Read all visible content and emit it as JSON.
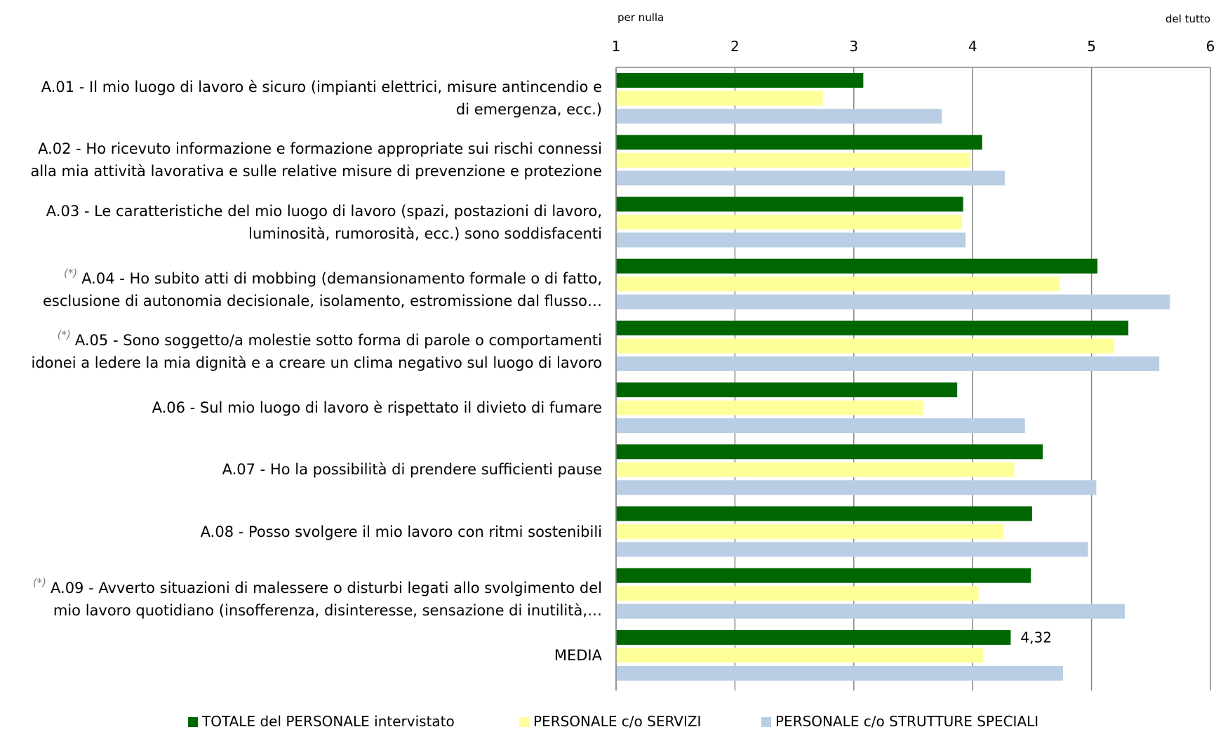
{
  "chart_data": {
    "type": "bar",
    "orientation": "horizontal",
    "xlim": [
      1,
      6
    ],
    "ticks": [
      "1",
      "2",
      "3",
      "4",
      "5",
      "6"
    ],
    "scale_low_label": "per nulla",
    "scale_high_label": "del tutto",
    "grid": true,
    "legend_position": "bottom",
    "categories": [
      {
        "code": "A.01",
        "asterisk": "",
        "lines": [
          "A.01 - Il mio luogo di lavoro è sicuro (impianti elettrici, misure antincendio e",
          "di emergenza, ecc.)"
        ]
      },
      {
        "code": "A.02",
        "asterisk": "",
        "lines": [
          "A.02 - Ho ricevuto informazione e formazione appropriate sui rischi connessi",
          "alla mia attività lavorativa e sulle relative misure di prevenzione e protezione"
        ]
      },
      {
        "code": "A.03",
        "asterisk": "",
        "lines": [
          "A.03 - Le caratteristiche del mio luogo di lavoro (spazi, postazioni di lavoro,",
          "luminosità, rumorosità, ecc.) sono soddisfacenti"
        ]
      },
      {
        "code": "A.04",
        "asterisk": "(*)",
        "lines": [
          "A.04 - Ho subito atti di mobbing (demansionamento formale o di fatto,",
          "esclusione di autonomia decisionale, isolamento, estromissione dal flusso…"
        ]
      },
      {
        "code": "A.05",
        "asterisk": "(*)",
        "lines": [
          "A.05 - Sono soggetto/a molestie sotto forma di parole o comportamenti",
          "idonei a ledere la mia dignità e a creare un clima negativo sul luogo di lavoro"
        ]
      },
      {
        "code": "A.06",
        "asterisk": "",
        "lines": [
          "A.06 - Sul mio luogo di lavoro è rispettato il divieto di fumare"
        ]
      },
      {
        "code": "A.07",
        "asterisk": "",
        "lines": [
          "A.07 - Ho la possibilità di prendere sufficienti pause"
        ]
      },
      {
        "code": "A.08",
        "asterisk": "",
        "lines": [
          "A.08 - Posso svolgere il mio lavoro con ritmi sostenibili"
        ]
      },
      {
        "code": "A.09",
        "asterisk": "(*)",
        "lines": [
          "A.09 - Avverto situazioni di malessere o disturbi legati allo svolgimento del",
          "mio lavoro quotidiano (insofferenza, disinteresse, sensazione di inutilità,…"
        ]
      },
      {
        "code": "MEDIA",
        "asterisk": "",
        "lines": [
          "MEDIA"
        ]
      }
    ],
    "series": [
      {
        "name": "TOTALE del PERSONALE intervistato",
        "color": "#006600",
        "values": [
          3.08,
          4.08,
          3.92,
          5.05,
          5.31,
          3.87,
          4.59,
          4.5,
          4.49,
          4.32
        ]
      },
      {
        "name": "PERSONALE c/o SERVIZI",
        "color": "#ffff99",
        "values": [
          2.74,
          3.98,
          3.91,
          4.73,
          5.19,
          3.58,
          4.35,
          4.26,
          4.05,
          4.09
        ]
      },
      {
        "name": "PERSONALE c/o STRUTTURE SPECIALI",
        "color": "#b9cde5",
        "values": [
          3.74,
          4.27,
          3.94,
          5.66,
          5.57,
          4.44,
          5.04,
          4.97,
          5.28,
          4.76
        ]
      }
    ],
    "data_labels": [
      {
        "series": 0,
        "category": 9,
        "text": "4,32"
      }
    ]
  }
}
